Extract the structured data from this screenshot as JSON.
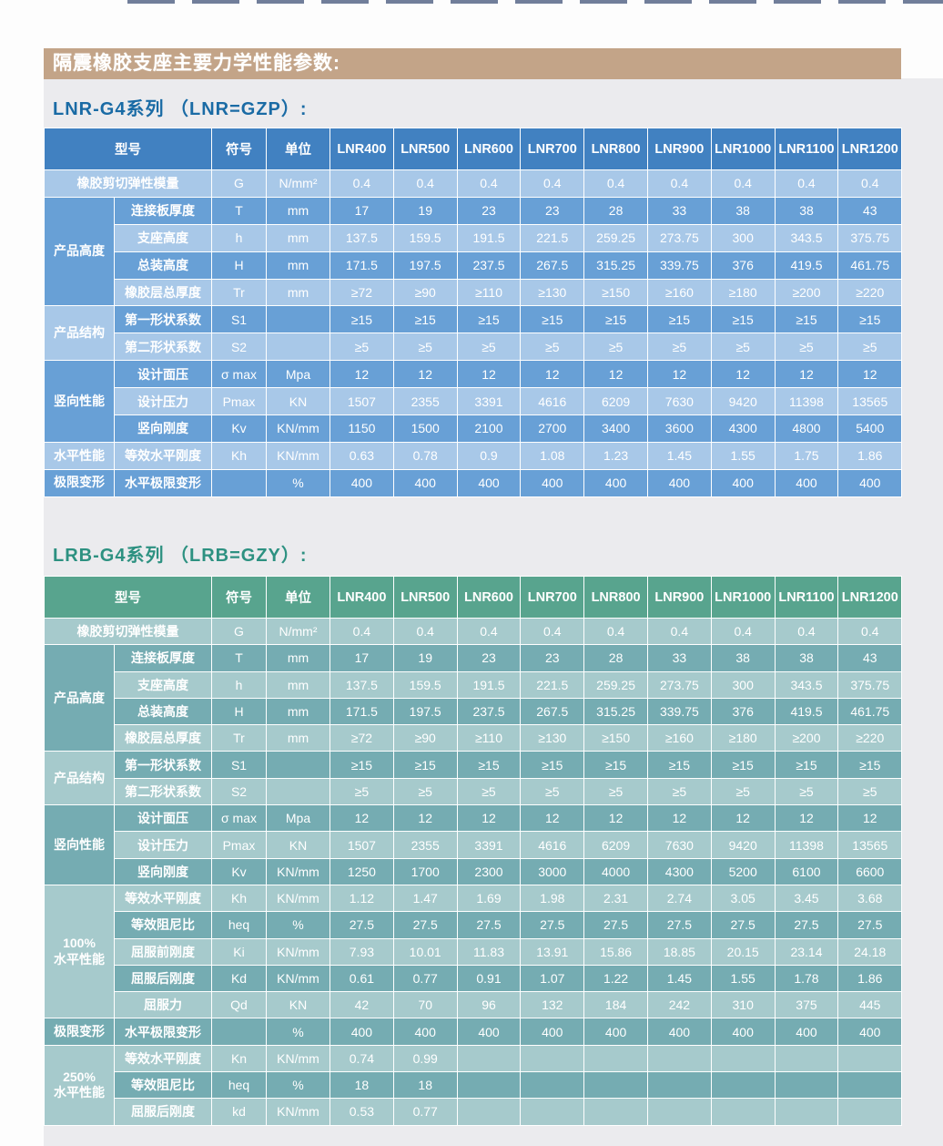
{
  "page": {
    "main_title": "隔震橡胶支座主要力学性能参数:"
  },
  "colors": {
    "banner_bg": "#c3a488",
    "panel_bg": "#ebebee",
    "page_bg": "#fdfdfd"
  },
  "themes": {
    "blue": {
      "header": "#4181c1",
      "medium": "#68a0d6",
      "light": "#a8c8e8",
      "title_color": "#1a6ba5"
    },
    "teal": {
      "header": "#58a48e",
      "medium": "#75acb2",
      "light": "#a6cacc",
      "title_color": "#2d9181"
    }
  },
  "tables": [
    {
      "title": "LNR-G4系列 （LNR=GZP）:",
      "theme": "blue",
      "columns": {
        "model_label": "型号",
        "symbol": "符号",
        "unit": "单位"
      },
      "models": [
        "LNR400",
        "LNR500",
        "LNR600",
        "LNR700",
        "LNR800",
        "LNR900",
        "LNR1000",
        "LNR1100",
        "LNR1200"
      ],
      "first_row": {
        "param": "橡胶剪切弹性模量",
        "symbol": "G",
        "unit": "N/mm²",
        "values": [
          "0.4",
          "0.4",
          "0.4",
          "0.4",
          "0.4",
          "0.4",
          "0.4",
          "0.4",
          "0.4"
        ]
      },
      "groups": [
        {
          "category": "产品高度",
          "rows": [
            {
              "param": "连接板厚度",
              "symbol": "T",
              "unit": "mm",
              "values": [
                "17",
                "19",
                "23",
                "23",
                "28",
                "33",
                "38",
                "38",
                "43"
              ]
            },
            {
              "param": "支座高度",
              "symbol": "h",
              "unit": "mm",
              "values": [
                "137.5",
                "159.5",
                "191.5",
                "221.5",
                "259.25",
                "273.75",
                "300",
                "343.5",
                "375.75"
              ]
            },
            {
              "param": "总装高度",
              "symbol": "H",
              "unit": "mm",
              "values": [
                "171.5",
                "197.5",
                "237.5",
                "267.5",
                "315.25",
                "339.75",
                "376",
                "419.5",
                "461.75"
              ]
            },
            {
              "param": "橡胶层总厚度",
              "symbol": "Tr",
              "unit": "mm",
              "values": [
                "≥72",
                "≥90",
                "≥110",
                "≥130",
                "≥150",
                "≥160",
                "≥180",
                "≥200",
                "≥220"
              ]
            }
          ]
        },
        {
          "category": "产品结构",
          "rows": [
            {
              "param": "第一形状系数",
              "symbol": "S1",
              "unit": "",
              "values": [
                "≥15",
                "≥15",
                "≥15",
                "≥15",
                "≥15",
                "≥15",
                "≥15",
                "≥15",
                "≥15"
              ]
            },
            {
              "param": "第二形状系数",
              "symbol": "S2",
              "unit": "",
              "values": [
                "≥5",
                "≥5",
                "≥5",
                "≥5",
                "≥5",
                "≥5",
                "≥5",
                "≥5",
                "≥5"
              ]
            }
          ]
        },
        {
          "category": "竖向性能",
          "rows": [
            {
              "param": "设计面压",
              "symbol": "σ max",
              "unit": "Mpa",
              "values": [
                "12",
                "12",
                "12",
                "12",
                "12",
                "12",
                "12",
                "12",
                "12"
              ]
            },
            {
              "param": "设计压力",
              "symbol": "Pmax",
              "unit": "KN",
              "values": [
                "1507",
                "2355",
                "3391",
                "4616",
                "6209",
                "7630",
                "9420",
                "11398",
                "13565"
              ]
            },
            {
              "param": "竖向刚度",
              "symbol": "Kv",
              "unit": "KN/mm",
              "values": [
                "1150",
                "1500",
                "2100",
                "2700",
                "3400",
                "3600",
                "4300",
                "4800",
                "5400"
              ]
            }
          ]
        },
        {
          "category": "水平性能",
          "rows": [
            {
              "param": "等效水平刚度",
              "symbol": "Kh",
              "unit": "KN/mm",
              "values": [
                "0.63",
                "0.78",
                "0.9",
                "1.08",
                "1.23",
                "1.45",
                "1.55",
                "1.75",
                "1.86"
              ]
            }
          ]
        },
        {
          "category": "极限变形",
          "rows": [
            {
              "param": "水平极限变形",
              "symbol": "",
              "unit": "%",
              "values": [
                "400",
                "400",
                "400",
                "400",
                "400",
                "400",
                "400",
                "400",
                "400"
              ]
            }
          ]
        }
      ]
    },
    {
      "title": "LRB-G4系列 （LRB=GZY）:",
      "theme": "teal",
      "columns": {
        "model_label": "型号",
        "symbol": "符号",
        "unit": "单位"
      },
      "models": [
        "LNR400",
        "LNR500",
        "LNR600",
        "LNR700",
        "LNR800",
        "LNR900",
        "LNR1000",
        "LNR1100",
        "LNR1200"
      ],
      "first_row": {
        "param": "橡胶剪切弹性模量",
        "symbol": "G",
        "unit": "N/mm²",
        "values": [
          "0.4",
          "0.4",
          "0.4",
          "0.4",
          "0.4",
          "0.4",
          "0.4",
          "0.4",
          "0.4"
        ]
      },
      "groups": [
        {
          "category": "产品高度",
          "rows": [
            {
              "param": "连接板厚度",
              "symbol": "T",
              "unit": "mm",
              "values": [
                "17",
                "19",
                "23",
                "23",
                "28",
                "33",
                "38",
                "38",
                "43"
              ]
            },
            {
              "param": "支座高度",
              "symbol": "h",
              "unit": "mm",
              "values": [
                "137.5",
                "159.5",
                "191.5",
                "221.5",
                "259.25",
                "273.75",
                "300",
                "343.5",
                "375.75"
              ]
            },
            {
              "param": "总装高度",
              "symbol": "H",
              "unit": "mm",
              "values": [
                "171.5",
                "197.5",
                "237.5",
                "267.5",
                "315.25",
                "339.75",
                "376",
                "419.5",
                "461.75"
              ]
            },
            {
              "param": "橡胶层总厚度",
              "symbol": "Tr",
              "unit": "mm",
              "values": [
                "≥72",
                "≥90",
                "≥110",
                "≥130",
                "≥150",
                "≥160",
                "≥180",
                "≥200",
                "≥220"
              ]
            }
          ]
        },
        {
          "category": "产品结构",
          "rows": [
            {
              "param": "第一形状系数",
              "symbol": "S1",
              "unit": "",
              "values": [
                "≥15",
                "≥15",
                "≥15",
                "≥15",
                "≥15",
                "≥15",
                "≥15",
                "≥15",
                "≥15"
              ]
            },
            {
              "param": "第二形状系数",
              "symbol": "S2",
              "unit": "",
              "values": [
                "≥5",
                "≥5",
                "≥5",
                "≥5",
                "≥5",
                "≥5",
                "≥5",
                "≥5",
                "≥5"
              ]
            }
          ]
        },
        {
          "category": "竖向性能",
          "rows": [
            {
              "param": "设计面压",
              "symbol": "σ max",
              "unit": "Mpa",
              "values": [
                "12",
                "12",
                "12",
                "12",
                "12",
                "12",
                "12",
                "12",
                "12"
              ]
            },
            {
              "param": "设计压力",
              "symbol": "Pmax",
              "unit": "KN",
              "values": [
                "1507",
                "2355",
                "3391",
                "4616",
                "6209",
                "7630",
                "9420",
                "11398",
                "13565"
              ]
            },
            {
              "param": "竖向刚度",
              "symbol": "Kv",
              "unit": "KN/mm",
              "values": [
                "1250",
                "1700",
                "2300",
                "3000",
                "4000",
                "4300",
                "5200",
                "6100",
                "6600"
              ]
            }
          ]
        },
        {
          "category": "100%\n水平性能",
          "rows": [
            {
              "param": "等效水平刚度",
              "symbol": "Kh",
              "unit": "KN/mm",
              "values": [
                "1.12",
                "1.47",
                "1.69",
                "1.98",
                "2.31",
                "2.74",
                "3.05",
                "3.45",
                "3.68"
              ]
            },
            {
              "param": "等效阻尼比",
              "symbol": "heq",
              "unit": "%",
              "values": [
                "27.5",
                "27.5",
                "27.5",
                "27.5",
                "27.5",
                "27.5",
                "27.5",
                "27.5",
                "27.5"
              ]
            },
            {
              "param": "屈服前刚度",
              "symbol": "Ki",
              "unit": "KN/mm",
              "values": [
                "7.93",
                "10.01",
                "11.83",
                "13.91",
                "15.86",
                "18.85",
                "20.15",
                "23.14",
                "24.18"
              ]
            },
            {
              "param": "屈服后刚度",
              "symbol": "Kd",
              "unit": "KN/mm",
              "values": [
                "0.61",
                "0.77",
                "0.91",
                "1.07",
                "1.22",
                "1.45",
                "1.55",
                "1.78",
                "1.86"
              ]
            },
            {
              "param": "屈服力",
              "symbol": "Qd",
              "unit": "KN",
              "values": [
                "42",
                "70",
                "96",
                "132",
                "184",
                "242",
                "310",
                "375",
                "445"
              ]
            }
          ]
        },
        {
          "category": "极限变形",
          "rows": [
            {
              "param": "水平极限变形",
              "symbol": "",
              "unit": "%",
              "values": [
                "400",
                "400",
                "400",
                "400",
                "400",
                "400",
                "400",
                "400",
                "400"
              ]
            }
          ]
        },
        {
          "category": "250%\n水平性能",
          "rows": [
            {
              "param": "等效水平刚度",
              "symbol": "Kn",
              "unit": "KN/mm",
              "values": [
                "0.74",
                "0.99",
                "",
                "",
                "",
                "",
                "",
                "",
                ""
              ]
            },
            {
              "param": "等效阻尼比",
              "symbol": "heq",
              "unit": "%",
              "values": [
                "18",
                "18",
                "",
                "",
                "",
                "",
                "",
                "",
                ""
              ]
            },
            {
              "param": "屈服后刚度",
              "symbol": "kd",
              "unit": "KN/mm",
              "values": [
                "0.53",
                "0.77",
                "",
                "",
                "",
                "",
                "",
                "",
                ""
              ]
            }
          ]
        }
      ]
    }
  ]
}
